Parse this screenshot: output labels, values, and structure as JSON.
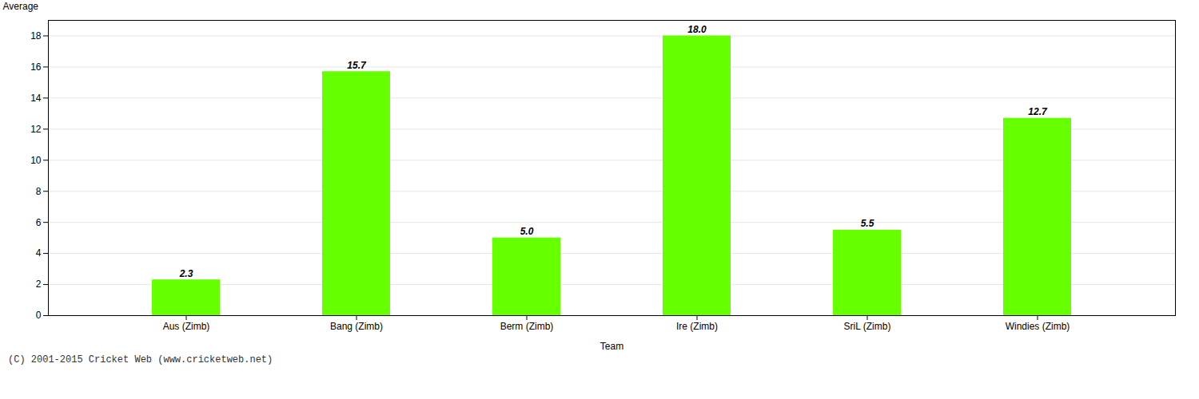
{
  "chart_data": {
    "type": "bar",
    "categories": [
      "Aus (Zimb)",
      "Bang (Zimb)",
      "Berm (Zimb)",
      "Ire (Zimb)",
      "SriL (Zimb)",
      "Windies (Zimb)"
    ],
    "values": [
      2.3,
      15.7,
      5.0,
      18.0,
      5.5,
      12.7
    ],
    "value_labels": [
      "2.3",
      "15.7",
      "5.0",
      "18.0",
      "5.5",
      "12.7"
    ],
    "data_labels": true,
    "color": "#66ff00",
    "xlabel": "Team",
    "ylabel": "Average",
    "ylim": [
      0,
      19
    ],
    "yticks": [
      0,
      2,
      4,
      6,
      8,
      10,
      12,
      14,
      16,
      18
    ],
    "grid": true,
    "caption": "(C) 2001-2015 Cricket Web (www.cricketweb.net)"
  }
}
